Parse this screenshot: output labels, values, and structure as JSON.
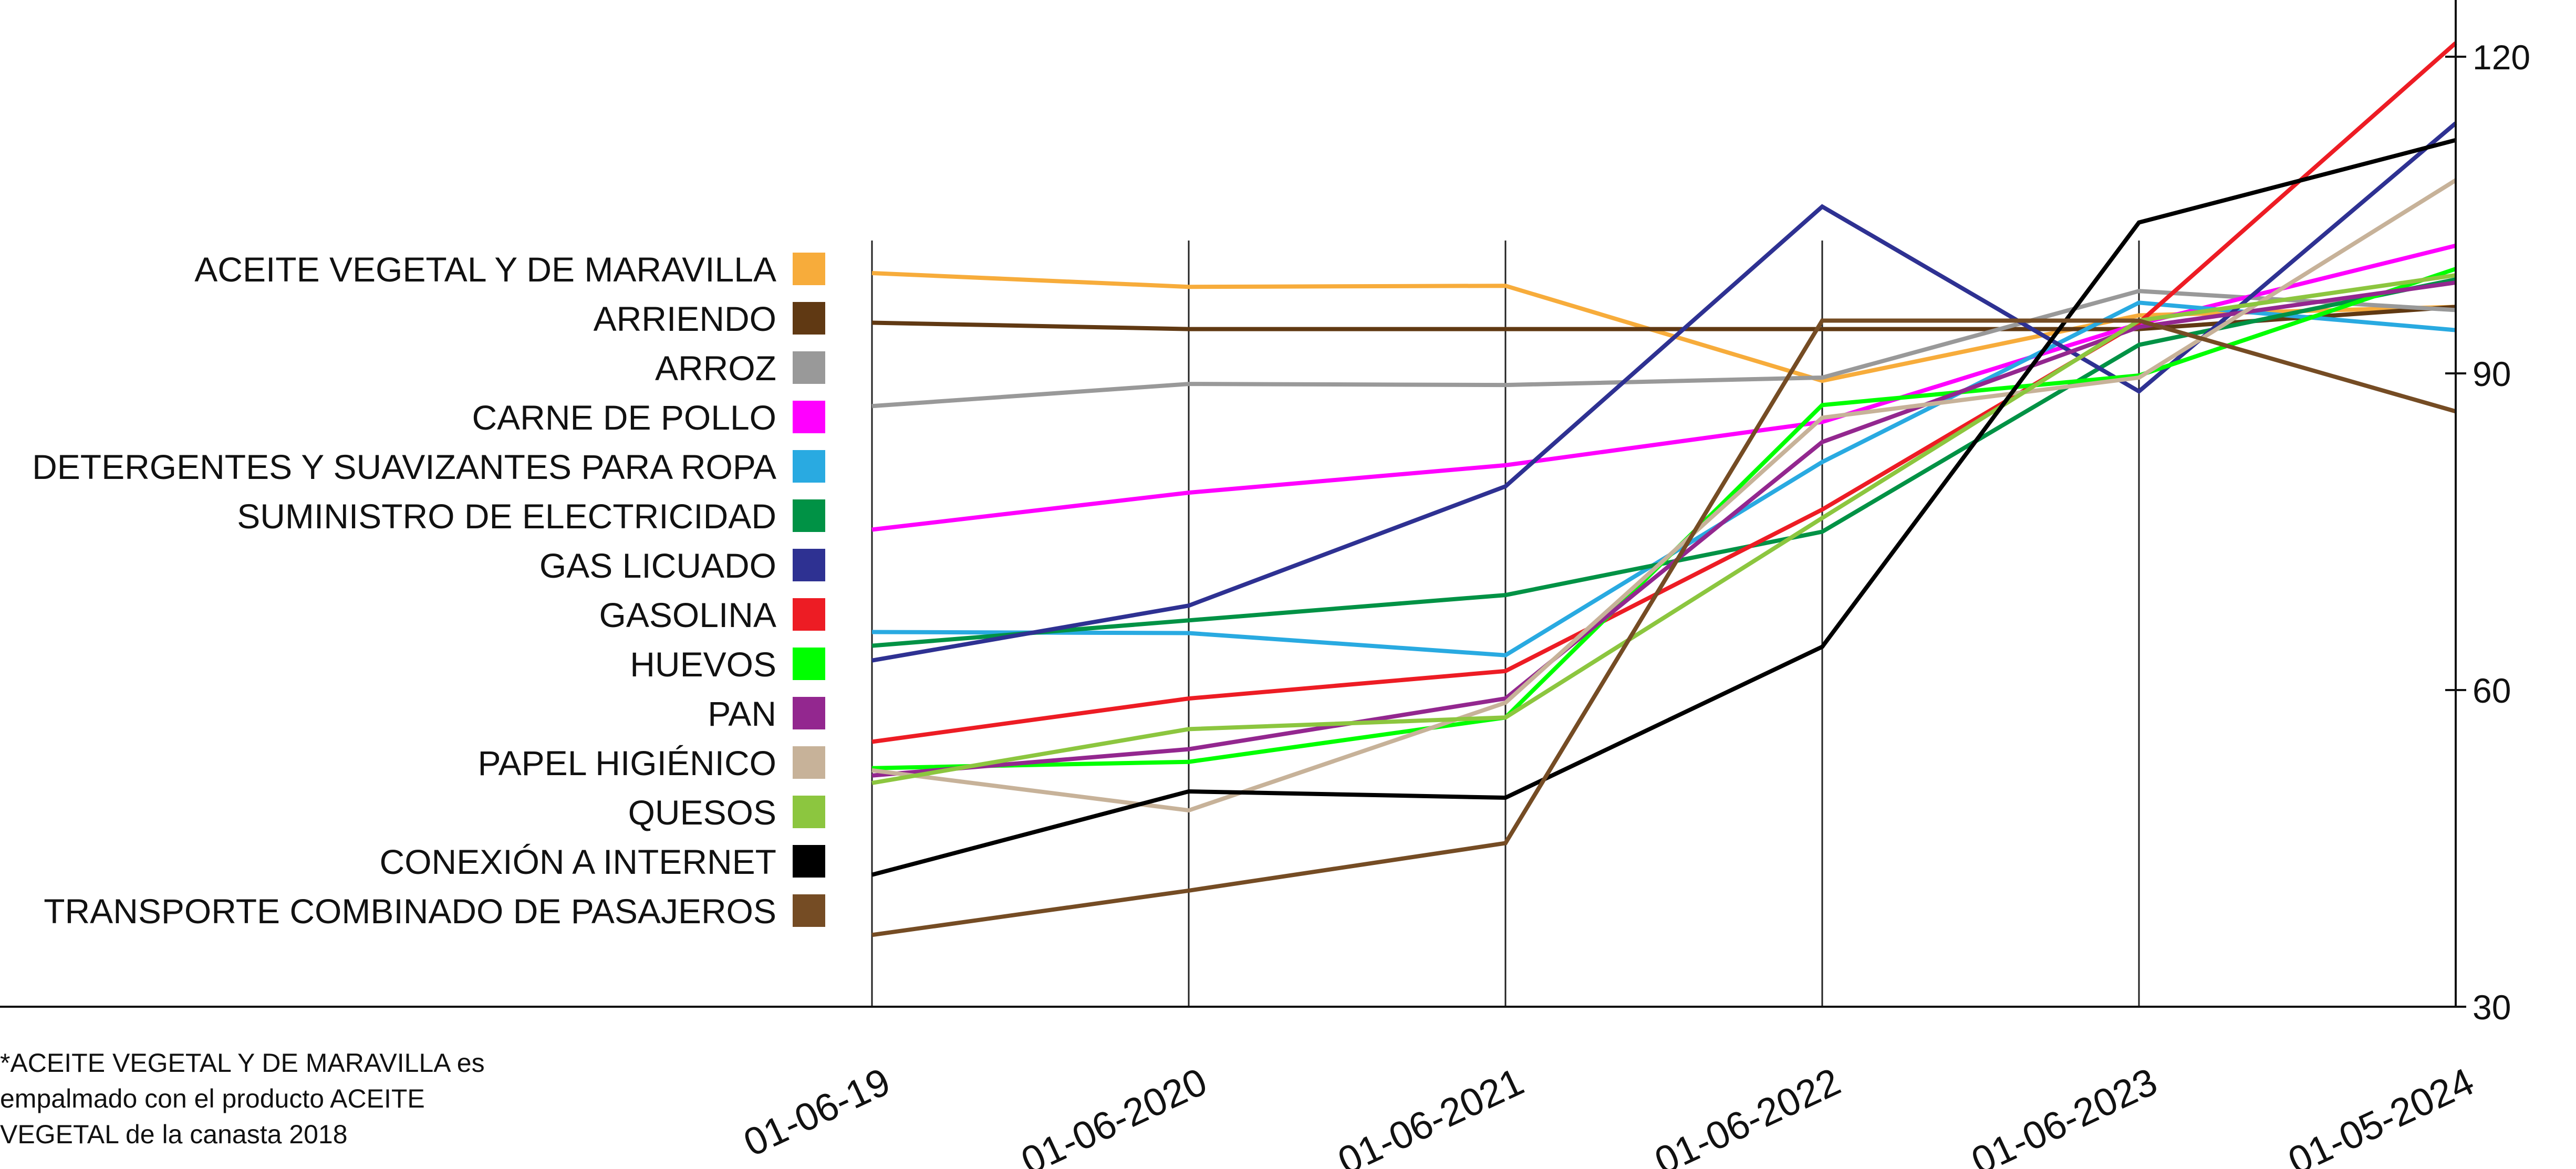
{
  "chart_data": {
    "type": "line",
    "title": "",
    "xlabel": "",
    "ylabel": "",
    "x": [
      "01-06-19",
      "01-06-2020",
      "01-06-2021",
      "01-06-2022",
      "01-06-2023",
      "01-05-2024"
    ],
    "y_axis": {
      "position": "right",
      "ticks": [
        30,
        60,
        90,
        120
      ],
      "ylim": [
        30,
        121.5
      ]
    },
    "grid": "vertical",
    "legend": "left",
    "series": [
      {
        "name": "ACEITE VEGETAL Y DE MARAVILLA",
        "color": "#f7ac3b",
        "values": [
          99.5,
          98.2,
          98.3,
          89.3,
          95.5,
          96.3
        ]
      },
      {
        "name": "ARRIENDO",
        "color": "#603913",
        "values": [
          94.8,
          94.2,
          94.2,
          94.2,
          94.2,
          96.3
        ]
      },
      {
        "name": "ARROZ",
        "color": "#999999",
        "values": [
          86.9,
          89.0,
          88.9,
          89.6,
          97.8,
          96.0
        ]
      },
      {
        "name": "CARNE DE POLLO",
        "color": "#ff00ff",
        "values": [
          75.2,
          78.7,
          81.3,
          85.4,
          94.7,
          102.1
        ]
      },
      {
        "name": "DETERGENTES Y SUAVIZANTES PARA ROPA",
        "color": "#29aae1",
        "values": [
          65.5,
          65.4,
          63.3,
          81.6,
          96.7,
          94.1
        ]
      },
      {
        "name": "SUMINISTRO DE ELECTRICIDAD",
        "color": "#009245",
        "values": [
          64.2,
          66.6,
          69.0,
          75.0,
          92.7,
          98.9
        ]
      },
      {
        "name": "GAS LICUADO",
        "color": "#2e3192",
        "values": [
          62.8,
          68.0,
          79.3,
          105.8,
          88.3,
          113.7
        ]
      },
      {
        "name": "GASOLINA",
        "color": "#ed1c24",
        "values": [
          55.1,
          59.2,
          61.8,
          77.1,
          94.8,
          121.3
        ]
      },
      {
        "name": "HUEVOS",
        "color": "#00ff00",
        "values": [
          52.6,
          53.2,
          57.4,
          87.0,
          89.8,
          99.9
        ]
      },
      {
        "name": "PAN",
        "color": "#93278f",
        "values": [
          51.9,
          54.4,
          59.2,
          83.5,
          94.4,
          98.6
        ]
      },
      {
        "name": "PAPEL HIGIÉNICO",
        "color": "#c7b299",
        "values": [
          52.4,
          48.6,
          58.8,
          85.8,
          89.6,
          108.3
        ]
      },
      {
        "name": "QUESOS",
        "color": "#8cc63f",
        "values": [
          51.2,
          56.3,
          57.4,
          76.3,
          95.0,
          99.3
        ]
      },
      {
        "name": "CONEXIÓN A INTERNET",
        "color": "#000000",
        "values": [
          42.5,
          50.4,
          49.8,
          64.1,
          104.3,
          112.1
        ]
      },
      {
        "name": "TRANSPORTE COMBINADO DE PASAJEROS",
        "color": "#754c24",
        "values": [
          36.8,
          41.0,
          45.5,
          95.0,
          95.0,
          86.4
        ]
      }
    ]
  },
  "footnote": "*ACEITE VEGETAL Y DE MARAVILLA es empalmado con el producto ACEITE VEGETAL de la canasta 2018"
}
